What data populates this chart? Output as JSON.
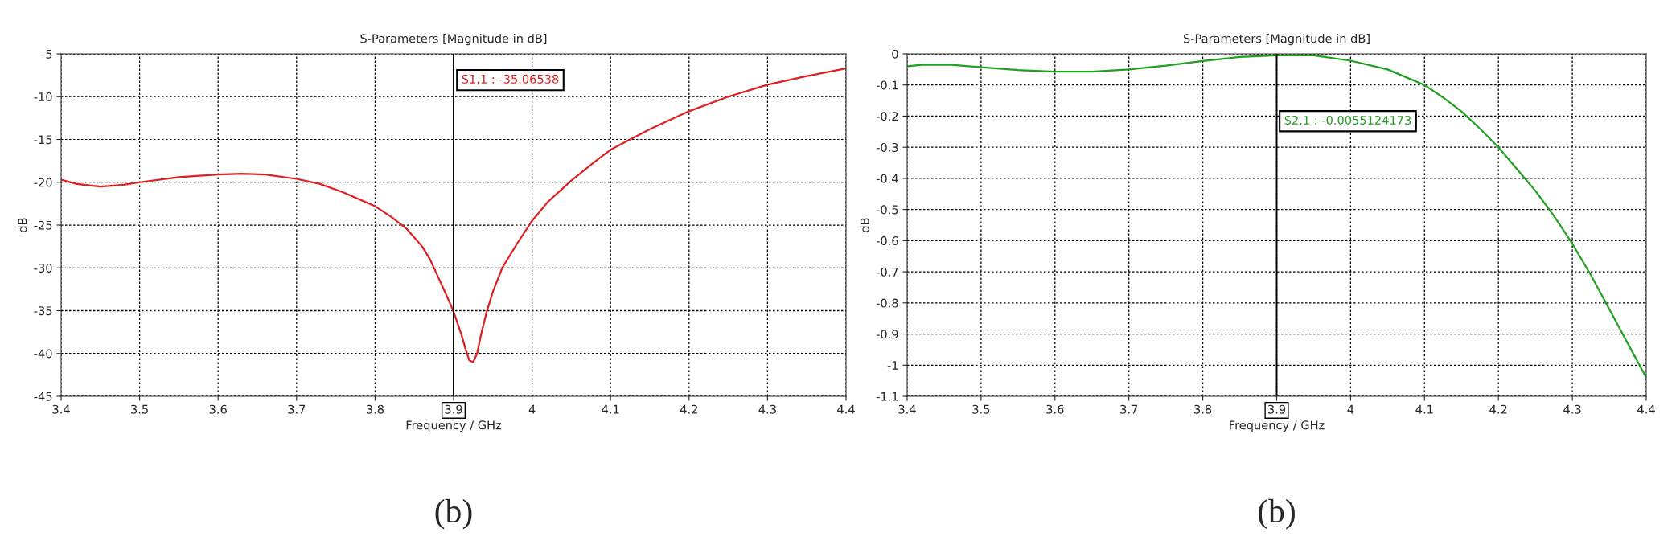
{
  "chart_data": [
    {
      "type": "line",
      "title": "S-Parameters [Magnitude in dB]",
      "xlabel": "Frequency / GHz",
      "ylabel": "dB",
      "x": [
        3.4,
        3.42,
        3.45,
        3.48,
        3.5,
        3.55,
        3.6,
        3.63,
        3.66,
        3.7,
        3.73,
        3.76,
        3.8,
        3.82,
        3.84,
        3.86,
        3.87,
        3.88,
        3.89,
        3.9,
        3.91,
        3.915,
        3.92,
        3.925,
        3.93,
        3.935,
        3.942,
        3.95,
        3.962,
        3.98,
        4.0,
        4.02,
        4.05,
        4.08,
        4.1,
        4.15,
        4.2,
        4.25,
        4.3,
        4.35,
        4.4
      ],
      "series": [
        {
          "color": "#e02020",
          "values": [
            -19.7,
            -20.2,
            -20.5,
            -20.3,
            -20.0,
            -19.4,
            -19.1,
            -19.0,
            -19.1,
            -19.6,
            -20.2,
            -21.2,
            -22.8,
            -24.0,
            -25.4,
            -27.5,
            -29.0,
            -31.0,
            -33.0,
            -35.1,
            -37.8,
            -39.4,
            -40.8,
            -41.0,
            -40.0,
            -37.8,
            -35.2,
            -32.8,
            -30.0,
            -27.3,
            -24.5,
            -22.3,
            -19.8,
            -17.6,
            -16.2,
            -13.8,
            -11.7,
            -10.0,
            -8.6,
            -7.6,
            -6.7
          ]
        }
      ],
      "xlim": [
        3.4,
        4.4
      ],
      "xticks": [
        3.4,
        3.5,
        3.6,
        3.7,
        3.8,
        3.9,
        4,
        4.1,
        4.2,
        4.3,
        4.4
      ],
      "ylim": [
        -45,
        -5
      ],
      "yticks": [
        -45,
        -40,
        -35,
        -30,
        -25,
        -20,
        -15,
        -10,
        -5
      ],
      "grid": true,
      "line_style": "solid",
      "marker": "none",
      "legend": false,
      "ref_lines": [
        {
          "axis": "x",
          "value": 3.9,
          "color": "#000000",
          "line_style": "solid"
        }
      ],
      "annotations": [
        "S1,1 : -35.06538",
        "(b)"
      ]
    },
    {
      "type": "line",
      "title": "S-Parameters [Magnitude in dB]",
      "xlabel": "Frequency / GHz",
      "ylabel": "dB",
      "x": [
        3.4,
        3.42,
        3.46,
        3.5,
        3.55,
        3.6,
        3.65,
        3.7,
        3.75,
        3.8,
        3.85,
        3.9,
        3.95,
        4.0,
        4.05,
        4.1,
        4.125,
        4.15,
        4.175,
        4.2,
        4.225,
        4.25,
        4.275,
        4.3,
        4.325,
        4.35,
        4.375,
        4.4
      ],
      "series": [
        {
          "color": "#20a020",
          "values": [
            -0.04,
            -0.035,
            -0.035,
            -0.043,
            -0.052,
            -0.057,
            -0.057,
            -0.05,
            -0.038,
            -0.023,
            -0.01,
            -0.005,
            -0.005,
            -0.022,
            -0.05,
            -0.1,
            -0.14,
            -0.185,
            -0.24,
            -0.3,
            -0.37,
            -0.44,
            -0.52,
            -0.61,
            -0.71,
            -0.82,
            -0.93,
            -1.04
          ]
        }
      ],
      "xlim": [
        3.4,
        4.4
      ],
      "xticks": [
        3.4,
        3.5,
        3.6,
        3.7,
        3.8,
        3.9,
        4,
        4.1,
        4.2,
        4.3,
        4.4
      ],
      "ylim": [
        -1.1,
        0
      ],
      "yticks": [
        -1.1,
        -1,
        -0.9,
        -0.8,
        -0.7,
        -0.6,
        -0.5,
        -0.4,
        -0.3,
        -0.2,
        -0.1,
        0
      ],
      "grid": true,
      "line_style": "solid",
      "marker": "none",
      "legend": false,
      "ref_lines": [
        {
          "axis": "x",
          "value": 3.9,
          "color": "#000000",
          "line_style": "solid"
        }
      ],
      "annotations": [
        "S2,1 : -0.0055124173",
        "(b)"
      ]
    }
  ]
}
